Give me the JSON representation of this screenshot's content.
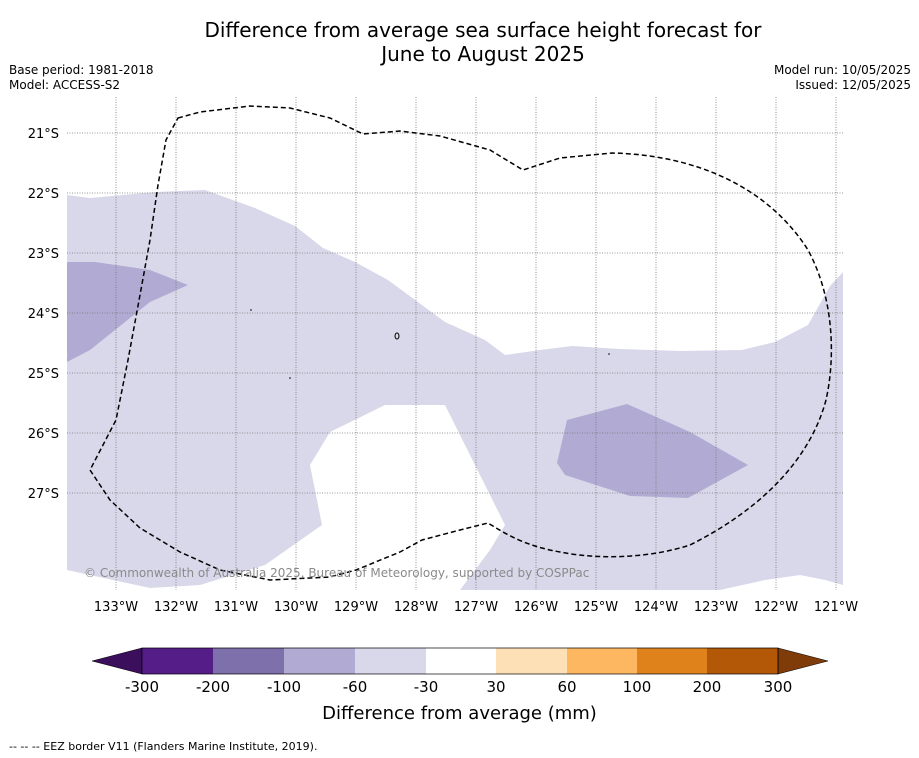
{
  "title": {
    "line1": "Difference from average sea surface height forecast for",
    "line2": "June to August 2025"
  },
  "meta": {
    "base_period": "Base period: 1981-2018",
    "model": "Model: ACCESS-S2",
    "model_run": "Model run: 10/05/2025",
    "issued": "Issued: 12/05/2025"
  },
  "map": {
    "lat_labels": [
      "21°S",
      "22°S",
      "23°S",
      "24°S",
      "25°S",
      "26°S",
      "27°S"
    ],
    "lon_labels": [
      "133°W",
      "132°W",
      "131°W",
      "130°W",
      "129°W",
      "128°W",
      "127°W",
      "126°W",
      "125°W",
      "124°W",
      "123°W",
      "122°W",
      "121°W"
    ],
    "copyright": "© Commonwealth of Australia 2025, Bureau of Meteorology, supported by COSPPac",
    "shading": {
      "-60_to_-30": "#d8d8ea",
      "-100_to_-60": "#b1aad2",
      "no_change": "#ffffff"
    },
    "eez_border_style": "dashed black"
  },
  "colorbar": {
    "ticks": [
      "-300",
      "-200",
      "-100",
      "-60",
      "-30",
      "30",
      "60",
      "100",
      "200",
      "300"
    ],
    "colors": [
      "#551d87",
      "#7e70ab",
      "#b1aad2",
      "#d8d8ea",
      "#ffffff",
      "#fee0b6",
      "#fdb761",
      "#e0821c",
      "#b35806"
    ],
    "under_color": "#3b0f5c",
    "over_color": "#7f3b08",
    "label": "Difference from average (mm)"
  },
  "footnote": "--  --  -- EEZ border V11 (Flanders Marine Institute, 2019)."
}
